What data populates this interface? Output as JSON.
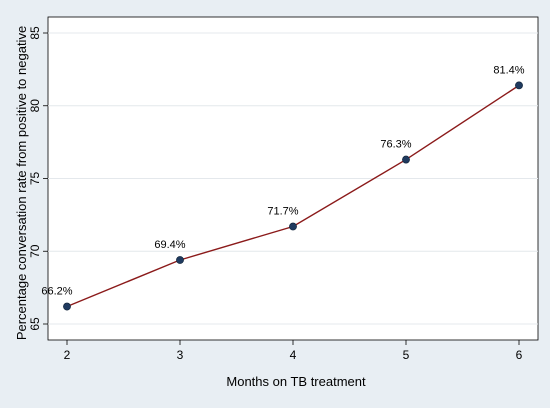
{
  "chart_data": {
    "type": "line",
    "title": "",
    "xlabel": "Months on TB treatment",
    "ylabel": "Percentage conversation rate from positive to negative",
    "xlim": [
      2,
      6
    ],
    "ylim": [
      65,
      85
    ],
    "xticks": [
      2,
      3,
      4,
      5,
      6
    ],
    "yticks": [
      65,
      70,
      75,
      80,
      85
    ],
    "grid": true,
    "legend": "none",
    "line_color": "#8b1a1a",
    "marker_color": "#1f3a5f",
    "series": [
      {
        "x": [
          2,
          3,
          4,
          5,
          6
        ],
        "values": [
          66.2,
          69.4,
          71.7,
          76.3,
          81.4
        ],
        "labels": [
          "66.2%",
          "69.4%",
          "71.7%",
          "76.3%",
          "81.4%"
        ]
      }
    ]
  }
}
